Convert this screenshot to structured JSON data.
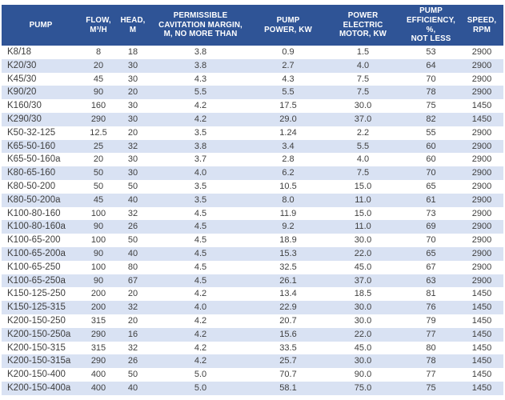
{
  "colors": {
    "header_bg": "#2F5496",
    "header_text": "#FFFFFF",
    "row_bg": "#FFFFFF",
    "row_alt_bg": "#D9E2F3",
    "body_text": "#3F3F3F"
  },
  "table": {
    "columns": [
      {
        "label": "PUMP"
      },
      {
        "label": "FLOW,\nM³/H"
      },
      {
        "label": "HEAD,\nM"
      },
      {
        "label": "PERMISSIBLE\nCAVITATION MARGIN,\nM, NO MORE THAN"
      },
      {
        "label": "PUMP\nPOWER, KW"
      },
      {
        "label": "POWER\nELECTRIC\nMOTOR, KW"
      },
      {
        "label": "PUMP\nEFFICIENCY, %,\nNOT LESS"
      },
      {
        "label": "SPEED,\nRPM"
      }
    ],
    "rows": [
      [
        "K8/18",
        "8",
        "18",
        "3.8",
        "0.9",
        "1.5",
        "53",
        "2900"
      ],
      [
        "K20/30",
        "20",
        "30",
        "3.8",
        "2.7",
        "4.0",
        "64",
        "2900"
      ],
      [
        "K45/30",
        "45",
        "30",
        "4.3",
        "4.3",
        "7.5",
        "70",
        "2900"
      ],
      [
        "K90/20",
        "90",
        "20",
        "5.5",
        "5.5",
        "7.5",
        "78",
        "2900"
      ],
      [
        "K160/30",
        "160",
        "30",
        "4.2",
        "17.5",
        "30.0",
        "75",
        "1450"
      ],
      [
        "K290/30",
        "290",
        "30",
        "4.2",
        "29.0",
        "37.0",
        "82",
        "1450"
      ],
      [
        "K50-32-125",
        "12.5",
        "20",
        "3.5",
        "1.24",
        "2.2",
        "55",
        "2900"
      ],
      [
        "K65-50-160",
        "25",
        "32",
        "3.8",
        "3.4",
        "5.5",
        "60",
        "2900"
      ],
      [
        "K65-50-160a",
        "20",
        "30",
        "3.7",
        "2.8",
        "4.0",
        "60",
        "2900"
      ],
      [
        "K80-65-160",
        "50",
        "30",
        "4.0",
        "6.2",
        "7.5",
        "70",
        "2900"
      ],
      [
        "K80-50-200",
        "50",
        "50",
        "3.5",
        "10.5",
        "15.0",
        "65",
        "2900"
      ],
      [
        "K80-50-200a",
        "45",
        "40",
        "3.5",
        "8.0",
        "11.0",
        "61",
        "2900"
      ],
      [
        "K100-80-160",
        "100",
        "32",
        "4.5",
        "11.9",
        "15.0",
        "73",
        "2900"
      ],
      [
        "K100-80-160a",
        "90",
        "26",
        "4.5",
        "9.2",
        "11.0",
        "69",
        "2900"
      ],
      [
        "K100-65-200",
        "100",
        "50",
        "4.5",
        "18.9",
        "30.0",
        "70",
        "2900"
      ],
      [
        "K100-65-200a",
        "90",
        "40",
        "4.5",
        "15.3",
        "22.0",
        "65",
        "2900"
      ],
      [
        "K100-65-250",
        "100",
        "80",
        "4.5",
        "32.5",
        "45.0",
        "67",
        "2900"
      ],
      [
        "K100-65-250a",
        "90",
        "67",
        "4.5",
        "26.1",
        "37.0",
        "63",
        "2900"
      ],
      [
        "K150-125-250",
        "200",
        "20",
        "4.2",
        "13.4",
        "18.5",
        "81",
        "1450"
      ],
      [
        "K150-125-315",
        "200",
        "32",
        "4.0",
        "22.9",
        "30.0",
        "76",
        "1450"
      ],
      [
        "K200-150-250",
        "315",
        "20",
        "4.2",
        "20.7",
        "30.0",
        "79",
        "1450"
      ],
      [
        "K200-150-250a",
        "290",
        "16",
        "4.2",
        "15.6",
        "22.0",
        "77",
        "1450"
      ],
      [
        "K200-150-315",
        "315",
        "32",
        "4.2",
        "33.5",
        "45.0",
        "80",
        "1450"
      ],
      [
        "K200-150-315a",
        "290",
        "26",
        "4.2",
        "25.7",
        "30.0",
        "78",
        "1450"
      ],
      [
        "K200-150-400",
        "400",
        "50",
        "5.0",
        "70.7",
        "90.0",
        "77",
        "1450"
      ],
      [
        "K200-150-400a",
        "400",
        "40",
        "5.0",
        "58.1",
        "75.0",
        "75",
        "1450"
      ]
    ]
  }
}
